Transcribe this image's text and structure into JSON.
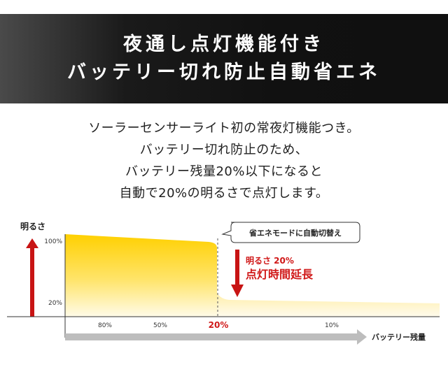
{
  "banner": {
    "line1": "夜通し点灯機能付き",
    "line2": "バッテリー切れ防止自動省エネ"
  },
  "description": [
    "ソーラーセンサーライト初の常夜灯機能つき。",
    "バッテリー切れ防止のため、",
    "バッテリー残量20%以下になると",
    "自動で20%の明るさで点灯します。"
  ],
  "colors": {
    "banner_bg": "#111111",
    "brightness_fill": "#ffd000",
    "arrow_red": "#c81414",
    "highlight_red": "#d01818",
    "axis_arrow": "#bdbdbd"
  },
  "chart_data": {
    "type": "area",
    "ylabel": "明るさ",
    "xlabel": "バッテリー残量",
    "yticks": [
      "100%",
      "20%"
    ],
    "xticks": [
      "80%",
      "50%",
      "20%",
      "10%"
    ],
    "highlight_tick": "20%",
    "series": [
      {
        "x": [
          100,
          80,
          50,
          20,
          20,
          10,
          0
        ],
        "y": [
          100,
          99,
          97,
          94,
          20,
          20,
          19
        ]
      }
    ],
    "annotations": {
      "callout": "省エネモードに自動切替え",
      "brightness_note": "明るさ 20%",
      "extension_note": "点灯時間延長"
    }
  }
}
